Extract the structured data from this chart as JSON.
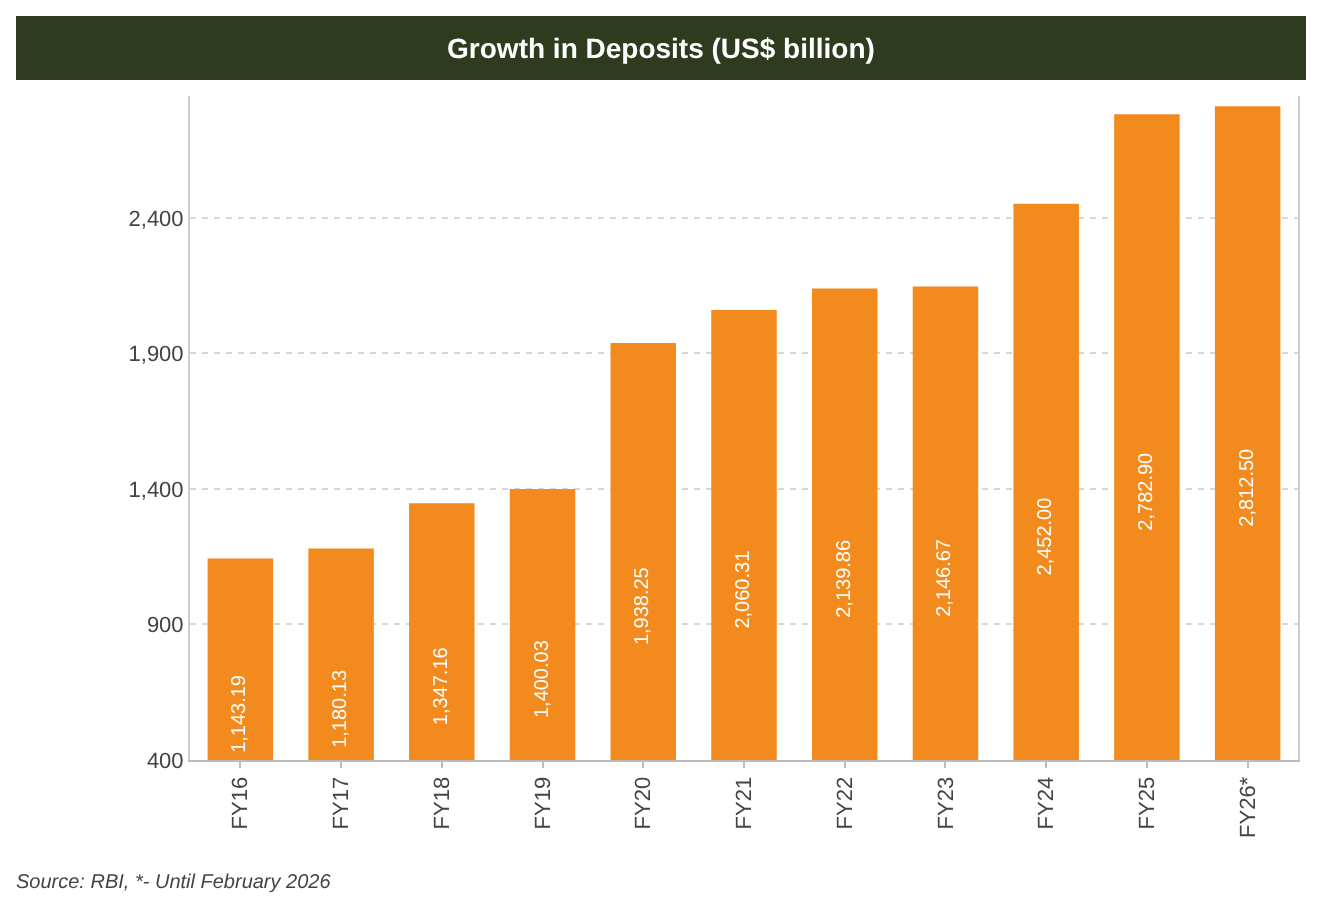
{
  "chart_data": {
    "type": "bar",
    "title": "Growth in Deposits (US$ billion)",
    "categories": [
      "FY16",
      "FY17",
      "FY18",
      "FY19",
      "FY20",
      "FY21",
      "FY22",
      "FY23",
      "FY24",
      "FY25",
      "FY26*"
    ],
    "values": [
      1143.19,
      1180.13,
      1347.16,
      1400.03,
      1938.25,
      2060.31,
      2139.86,
      2146.67,
      2452.0,
      2782.9,
      2812.5
    ],
    "value_labels": [
      "1,143.19",
      "1,180.13",
      "1,347.16",
      "1,400.03",
      "1,938.25",
      "2,060.31",
      "2,139.86",
      "2,146.67",
      "2,452.00",
      "2,782.90",
      "2,812.50"
    ],
    "color": "#f28a1e",
    "ylim": [
      400,
      2850
    ],
    "yticks": [
      {
        "value": 400,
        "label": "400"
      },
      {
        "value": 900,
        "label": "900"
      },
      {
        "value": 1400,
        "label": "1,400"
      },
      {
        "value": 1900,
        "label": "1,900"
      },
      {
        "value": 2400,
        "label": "2,400"
      }
    ],
    "grid": "y",
    "annotations": [
      "Source: RBI, *- Until February 2026"
    ]
  }
}
